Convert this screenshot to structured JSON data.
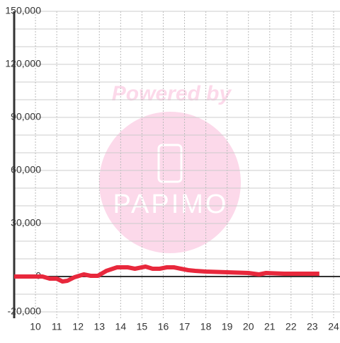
{
  "chart_data": {
    "type": "line",
    "watermark": {
      "line1": "Powered by",
      "line2": "PAPIMO"
    },
    "x": [
      9.0,
      10.0,
      10.33,
      10.67,
      11.0,
      11.27,
      11.5,
      11.83,
      12.27,
      12.6,
      12.93,
      13.33,
      13.83,
      14.33,
      14.67,
      15.17,
      15.5,
      15.83,
      16.17,
      16.5,
      16.83,
      17.17,
      17.5,
      18.0,
      19.0,
      20.0,
      20.5,
      20.83,
      21.67,
      23.33
    ],
    "series": [
      {
        "color": "#e8283c",
        "values": [
          0,
          0,
          0,
          -1200,
          -1200,
          -2800,
          -2400,
          -400,
          1200,
          400,
          400,
          3200,
          5200,
          5200,
          4400,
          5600,
          4400,
          4400,
          5200,
          5200,
          4400,
          3600,
          3200,
          2800,
          2400,
          2000,
          1200,
          2000,
          1600,
          1600
        ]
      }
    ],
    "xlim": [
      9,
      24.3
    ],
    "xticks": [
      10,
      11,
      12,
      13,
      14,
      15,
      16,
      17,
      18,
      19,
      20,
      21,
      22,
      23,
      24
    ],
    "ylim": [
      -20000,
      150000
    ],
    "yticks": [
      {
        "value": 150000,
        "label": "150,000"
      },
      {
        "value": 120000,
        "label": "120,000"
      },
      {
        "value": 90000,
        "label": "90,000"
      },
      {
        "value": 60000,
        "label": "60,000"
      },
      {
        "value": 30000,
        "label": "30,000"
      },
      0,
      {
        "value": -20000,
        "label": "-20,000"
      }
    ],
    "yminor_grid": [
      140000,
      130000,
      110000,
      100000,
      80000,
      70000,
      50000,
      40000,
      20000,
      10000,
      -10000
    ],
    "grid": true
  }
}
